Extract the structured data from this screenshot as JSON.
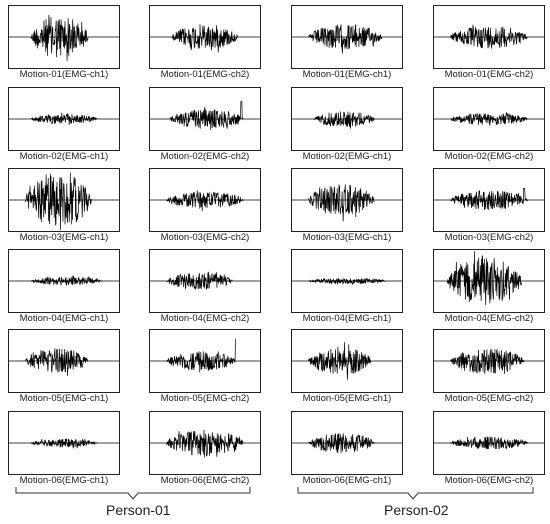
{
  "figure": {
    "persons": [
      {
        "label": "Person-01"
      },
      {
        "label": "Person-02"
      }
    ],
    "captions": [
      [
        "Motion-01(EMG-ch1)",
        "Motion-01(EMG-ch2)",
        "Motion-01(EMG-ch1)",
        "Motion-01(EMG-ch2)"
      ],
      [
        "Motion-02(EMG-ch1)",
        "Motion-02(EMG-ch2)",
        "Motion-02(EMG-ch1)",
        "Motion-02(EMG-ch2)"
      ],
      [
        "Motion-03(EMG-ch1)",
        "Motion-03(EMG-ch2)",
        "Motion-03(EMG-ch1)",
        "Motion-03(EMG-ch2)"
      ],
      [
        "Motion-04(EMG-ch1)",
        "Motion-04(EMG-ch2)",
        "Motion-04(EMG-ch1)",
        "Motion-04(EMG-ch2)"
      ],
      [
        "Motion-05(EMG-ch1)",
        "Motion-05(EMG-ch2)",
        "Motion-05(EMG-ch1)",
        "Motion-05(EMG-ch2)"
      ],
      [
        "Motion-06(EMG-ch1)",
        "Motion-06(EMG-ch2)",
        "Motion-06(EMG-ch1)",
        "Motion-06(EMG-ch2)"
      ]
    ]
  },
  "chart_data": {
    "type": "line",
    "grid": false,
    "legend": "none",
    "line_color": "#000000",
    "panels": [
      {
        "person": "Person-01",
        "motion": "Motion-01",
        "channel": "EMG-ch1",
        "burst": [
          0.2,
          0.72
        ],
        "amplitude": 0.75
      },
      {
        "person": "Person-01",
        "motion": "Motion-01",
        "channel": "EMG-ch2",
        "burst": [
          0.2,
          0.8
        ],
        "amplitude": 0.45
      },
      {
        "person": "Person-02",
        "motion": "Motion-01",
        "channel": "EMG-ch1",
        "burst": [
          0.15,
          0.82
        ],
        "amplitude": 0.45
      },
      {
        "person": "Person-02",
        "motion": "Motion-01",
        "channel": "EMG-ch2",
        "burst": [
          0.15,
          0.85
        ],
        "amplitude": 0.4
      },
      {
        "person": "Person-01",
        "motion": "Motion-02",
        "channel": "EMG-ch1",
        "burst": [
          0.2,
          0.8
        ],
        "amplitude": 0.18
      },
      {
        "person": "Person-01",
        "motion": "Motion-02",
        "channel": "EMG-ch2",
        "burst": [
          0.18,
          0.85
        ],
        "amplitude": 0.35,
        "spike_at": 0.83,
        "spike_amp": 0.6
      },
      {
        "person": "Person-02",
        "motion": "Motion-02",
        "channel": "EMG-ch1",
        "burst": [
          0.2,
          0.75
        ],
        "amplitude": 0.28
      },
      {
        "person": "Person-02",
        "motion": "Motion-02",
        "channel": "EMG-ch2",
        "burst": [
          0.15,
          0.85
        ],
        "amplitude": 0.22
      },
      {
        "person": "Person-01",
        "motion": "Motion-03",
        "channel": "EMG-ch1",
        "burst": [
          0.15,
          0.75
        ],
        "amplitude": 0.95
      },
      {
        "person": "Person-01",
        "motion": "Motion-03",
        "channel": "EMG-ch2",
        "burst": [
          0.15,
          0.85
        ],
        "amplitude": 0.3
      },
      {
        "person": "Person-02",
        "motion": "Motion-03",
        "channel": "EMG-ch1",
        "burst": [
          0.15,
          0.75
        ],
        "amplitude": 0.55
      },
      {
        "person": "Person-02",
        "motion": "Motion-03",
        "channel": "EMG-ch2",
        "burst": [
          0.15,
          0.85
        ],
        "amplitude": 0.35,
        "spike_at": 0.82,
        "spike_amp": 0.4
      },
      {
        "person": "Person-01",
        "motion": "Motion-04",
        "channel": "EMG-ch1",
        "burst": [
          0.2,
          0.85
        ],
        "amplitude": 0.15
      },
      {
        "person": "Person-01",
        "motion": "Motion-04",
        "channel": "EMG-ch2",
        "burst": [
          0.15,
          0.75
        ],
        "amplitude": 0.3
      },
      {
        "person": "Person-02",
        "motion": "Motion-04",
        "channel": "EMG-ch1",
        "burst": [
          0.15,
          0.85
        ],
        "amplitude": 0.1
      },
      {
        "person": "Person-02",
        "motion": "Motion-04",
        "channel": "EMG-ch2",
        "burst": [
          0.12,
          0.8
        ],
        "amplitude": 0.85
      },
      {
        "person": "Person-01",
        "motion": "Motion-05",
        "channel": "EMG-ch1",
        "burst": [
          0.15,
          0.72
        ],
        "amplitude": 0.45
      },
      {
        "person": "Person-01",
        "motion": "Motion-05",
        "channel": "EMG-ch2",
        "burst": [
          0.15,
          0.78
        ],
        "amplitude": 0.35,
        "spike_at": 0.78,
        "spike_amp": 0.75
      },
      {
        "person": "Person-02",
        "motion": "Motion-05",
        "channel": "EMG-ch1",
        "burst": [
          0.15,
          0.72
        ],
        "amplitude": 0.5
      },
      {
        "person": "Person-02",
        "motion": "Motion-05",
        "channel": "EMG-ch2",
        "burst": [
          0.15,
          0.82
        ],
        "amplitude": 0.45
      },
      {
        "person": "Person-01",
        "motion": "Motion-06",
        "channel": "EMG-ch1",
        "burst": [
          0.2,
          0.8
        ],
        "amplitude": 0.15
      },
      {
        "person": "Person-01",
        "motion": "Motion-06",
        "channel": "EMG-ch2",
        "burst": [
          0.15,
          0.85
        ],
        "amplitude": 0.45
      },
      {
        "person": "Person-02",
        "motion": "Motion-06",
        "channel": "EMG-ch1",
        "burst": [
          0.15,
          0.75
        ],
        "amplitude": 0.35
      },
      {
        "person": "Person-02",
        "motion": "Motion-06",
        "channel": "EMG-ch2",
        "burst": [
          0.15,
          0.85
        ],
        "amplitude": 0.22
      }
    ]
  }
}
